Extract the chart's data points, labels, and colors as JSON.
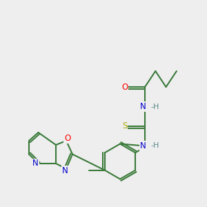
{
  "bg_color": "#eeeeee",
  "bond_color": "#3a7a3a",
  "atom_colors": {
    "O": "#ff0000",
    "N": "#0000cc",
    "S": "#aaaa00",
    "H": "#5a8a8a",
    "C": "#3a7a3a"
  },
  "figsize": [
    3.0,
    3.0
  ],
  "dpi": 100
}
